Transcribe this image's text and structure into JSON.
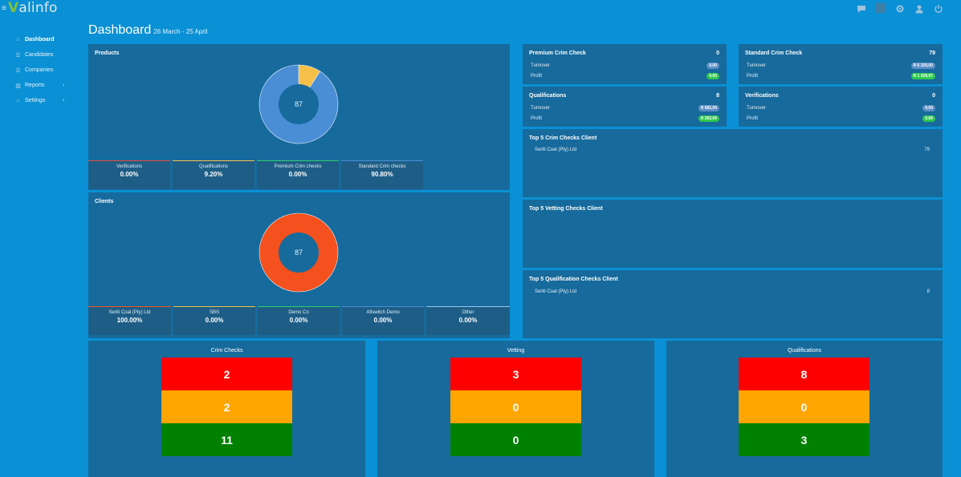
{
  "app": {
    "logo_text": "alinfo",
    "logo_mark": "V"
  },
  "icons": {
    "menu": "menu-icon",
    "chat": "chat-icon",
    "settings": "gear-icon",
    "user": "user-icon",
    "power": "power-icon"
  },
  "sidebar": {
    "items": [
      {
        "label": "Dashboard",
        "icon": "home-icon"
      },
      {
        "label": "Candidates",
        "icon": "list-icon"
      },
      {
        "label": "Companies",
        "icon": "building-icon"
      },
      {
        "label": "Reports",
        "icon": "chart-icon",
        "chevron": "‹"
      },
      {
        "label": "Settings",
        "icon": "bank-icon",
        "chevron": "‹"
      }
    ]
  },
  "header": {
    "title": "Dashboard",
    "date_range": "26 March - 25 April"
  },
  "products": {
    "title": "Products",
    "total": "87",
    "chart": {
      "slices": [
        {
          "value": 9.2,
          "color": "#f5c04a"
        },
        {
          "value": 90.8,
          "color": "#4a8ed6"
        }
      ]
    },
    "stats": [
      {
        "label": "Verifications",
        "value": "0.00%",
        "color": "#e74c3c"
      },
      {
        "label": "Qualifications",
        "value": "9.20%",
        "color": "#f5c04a"
      },
      {
        "label": "Premium Crim checks",
        "value": "0.00%",
        "color": "#2ecc71"
      },
      {
        "label": "Standard Crim checks",
        "value": "90.80%",
        "color": "#4a8ed6"
      }
    ]
  },
  "clients": {
    "title": "Clients",
    "total": "87",
    "chart": {
      "slices": [
        {
          "value": 100,
          "color": "#f4511e"
        }
      ]
    },
    "stats": [
      {
        "label": "Seriti Coal (Pty) Ltd",
        "value": "100.00%",
        "color": "#f4511e"
      },
      {
        "label": "SBS",
        "value": "0.00%",
        "color": "#f5c04a"
      },
      {
        "label": "Demo Co",
        "value": "0.00%",
        "color": "#2ecc71"
      },
      {
        "label": "Afiswitch Demo",
        "value": "0.00%",
        "color": "#4a8ed6"
      },
      {
        "label": "Other",
        "value": "0.00%",
        "color": "#95c6e8"
      }
    ]
  },
  "kpis": [
    {
      "title": "Premium Crim Check",
      "count": "0",
      "turnover_label": "Turnover",
      "turnover": "0.00",
      "profit_label": "Profit",
      "profit": "0.00"
    },
    {
      "title": "Standard Crim Check",
      "count": "79",
      "turnover_label": "Turnover",
      "turnover": "R 6 320,00",
      "profit_label": "Profit",
      "profit": "R 1 929,97"
    },
    {
      "title": "Qualifications",
      "count": "8",
      "turnover_label": "Turnover",
      "turnover": "R 681,00",
      "profit_label": "Profit",
      "profit": "R 262,00"
    },
    {
      "title": "Verifications",
      "count": "0",
      "turnover_label": "Turnover",
      "turnover": "0.00",
      "profit_label": "Profit",
      "profit": "0.00"
    }
  ],
  "top_crim": {
    "title": "Top 5 Crim Checks Client",
    "rows": [
      {
        "name": "Seriti Coal (Pty) Ltd",
        "value": "79"
      }
    ]
  },
  "top_vetting": {
    "title": "Top 5 Vetting Checks Client"
  },
  "top_qual": {
    "title": "Top 5 Qualification Checks Client",
    "rows": [
      {
        "name": "Seriti Coal (Pty) Ltd",
        "value": "8"
      }
    ]
  },
  "summary": [
    {
      "title": "Crim Checks",
      "values": [
        "2",
        "2",
        "11"
      ]
    },
    {
      "title": "Vetting",
      "values": [
        "3",
        "0",
        "0"
      ]
    },
    {
      "title": "Qualifications",
      "values": [
        "8",
        "0",
        "3"
      ]
    }
  ],
  "colors": {
    "background": "#0a90d4",
    "panel": "#176a9c",
    "red": "#ff0000",
    "amber": "#ffa500",
    "green": "#008000"
  }
}
